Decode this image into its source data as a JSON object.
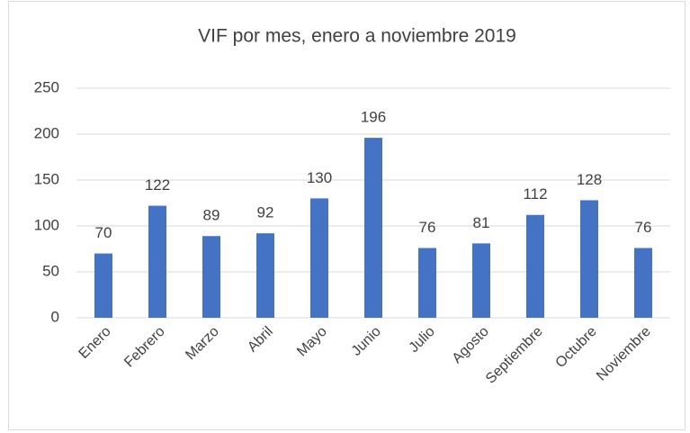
{
  "chart_data": {
    "type": "bar",
    "title": "VIF por mes, enero a noviembre 2019",
    "categories": [
      "Enero",
      "Febrero",
      "Marzo",
      "Abril",
      "Mayo",
      "Junio",
      "Julio",
      "Agosto",
      "Septiembre",
      "Octubre",
      "Noviembre"
    ],
    "values": [
      70,
      122,
      89,
      92,
      130,
      196,
      76,
      81,
      112,
      128,
      76
    ],
    "color": "#4472c4",
    "ylim": [
      0,
      250
    ],
    "yticks": [
      0,
      50,
      100,
      150,
      200,
      250
    ],
    "grid": true
  }
}
